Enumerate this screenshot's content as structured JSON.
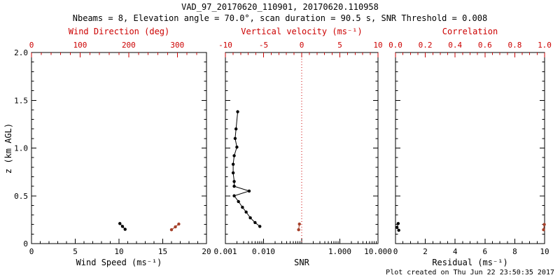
{
  "figure": {
    "title": "VAD_97_20170620_110901, 20170620.110958",
    "subtitle": "Nbeams = 8, Elevation angle = 70.0°, scan duration = 90.5 s, SNR Threshold = 0.008",
    "footer": "Plot created on Thu Jun 22 23:50:35 2017",
    "accent_color": "#cc0000",
    "series_red_color": "#a5402a",
    "foreground_color": "#000000"
  },
  "chart_data": [
    {
      "type": "scatter",
      "panel": "wind",
      "xlabel": "Wind Speed (ms⁻¹)",
      "x2label": "Wind Direction (deg)",
      "ylabel": "z (km AGL)",
      "xlim": [
        0,
        20
      ],
      "x2lim": [
        0,
        360
      ],
      "ylim": [
        0,
        2.0
      ],
      "xticks": [
        0,
        5,
        10,
        15,
        20
      ],
      "xtick_labels": [
        "0",
        "5",
        "10",
        "15",
        "20"
      ],
      "x2ticks": [
        0,
        100,
        200,
        300
      ],
      "x2tick_labels": [
        "0",
        "100",
        "200",
        "300"
      ],
      "yticks": [
        0,
        0.5,
        1.0,
        1.5,
        2.0
      ],
      "ytick_labels": [
        "0",
        "0.5",
        "1.0",
        "1.5",
        "2.0"
      ],
      "xminor_div": 5,
      "x2minor_div": 5,
      "grid": false,
      "series": [
        {
          "name": "wind-speed",
          "axis": "x1",
          "color": "#000000",
          "line": true,
          "points": [
            [
              10.1,
              0.21
            ],
            [
              10.4,
              0.18
            ],
            [
              10.7,
              0.15
            ]
          ]
        },
        {
          "name": "wind-direction",
          "axis": "x2",
          "color": "#a5402a",
          "line": true,
          "points": [
            [
              288,
              0.145
            ],
            [
              296,
              0.175
            ],
            [
              303,
              0.205
            ]
          ]
        }
      ]
    },
    {
      "type": "scatter",
      "panel": "snr",
      "xlabel": "SNR",
      "x2label": "Vertical velocity (ms⁻¹)",
      "xscale": "log",
      "xlim": [
        0.001,
        10.0
      ],
      "x2lim": [
        -10,
        10
      ],
      "ylim": [
        0,
        2.0
      ],
      "xticks": [
        0.001,
        0.01,
        0.1,
        1.0,
        10.0
      ],
      "xtick_labels": [
        "0.001",
        "0.010",
        "",
        "1.000",
        "10.000"
      ],
      "x2ticks": [
        -10,
        -5,
        0,
        5,
        10
      ],
      "x2tick_labels": [
        "-10",
        "-5",
        "0",
        "5",
        "10"
      ],
      "yticks": [
        0,
        0.5,
        1.0,
        1.5,
        2.0
      ],
      "ytick_labels": [],
      "x2minor_div": 5,
      "grid": false,
      "refline": {
        "axis": "x2",
        "value": 0,
        "style": "dotted",
        "color": "#cc0000"
      },
      "series": [
        {
          "name": "snr-profile",
          "axis": "x1",
          "color": "#000000",
          "line": true,
          "points": [
            [
              0.0021,
              1.38
            ],
            [
              0.0019,
              1.2
            ],
            [
              0.0018,
              1.1
            ],
            [
              0.002,
              1.01
            ],
            [
              0.0017,
              0.92
            ],
            [
              0.0016,
              0.83
            ],
            [
              0.0016,
              0.74
            ],
            [
              0.0017,
              0.65
            ],
            [
              0.0017,
              0.6
            ],
            [
              0.0042,
              0.55
            ],
            [
              0.0017,
              0.5
            ],
            [
              0.0022,
              0.44
            ],
            [
              0.0028,
              0.38
            ],
            [
              0.0035,
              0.33
            ],
            [
              0.0045,
              0.27
            ],
            [
              0.006,
              0.22
            ],
            [
              0.008,
              0.18
            ]
          ]
        },
        {
          "name": "vertical-velocity",
          "axis": "x2",
          "color": "#a5402a",
          "line": true,
          "points": [
            [
              -0.4,
              0.145
            ],
            [
              -0.3,
              0.205
            ]
          ]
        }
      ]
    },
    {
      "type": "scatter",
      "panel": "residual",
      "xlabel": "Residual (ms⁻¹)",
      "x2label": "Correlation",
      "xlim": [
        0,
        10
      ],
      "x2lim": [
        0,
        1.0
      ],
      "ylim": [
        0,
        2.0
      ],
      "xticks": [
        0,
        2,
        4,
        6,
        8,
        10
      ],
      "xtick_labels": [
        "0",
        "2",
        "4",
        "6",
        "8",
        "10"
      ],
      "x2ticks": [
        0.0,
        0.2,
        0.4,
        0.6,
        0.8,
        1.0
      ],
      "x2tick_labels": [
        "0.0",
        "0.2",
        "0.4",
        "0.6",
        "0.8",
        "1.0"
      ],
      "yticks": [
        0,
        0.5,
        1.0,
        1.5,
        2.0
      ],
      "ytick_labels": [],
      "xminor_div": 4,
      "x2minor_div": 4,
      "grid": false,
      "series": [
        {
          "name": "residual",
          "axis": "x1",
          "color": "#000000",
          "line": true,
          "points": [
            [
              0.18,
              0.21
            ],
            [
              0.1,
              0.17
            ],
            [
              0.22,
              0.14
            ]
          ]
        },
        {
          "name": "correlation",
          "axis": "x2",
          "color": "#a5402a",
          "line": true,
          "points": [
            [
              0.993,
              0.145
            ],
            [
              0.998,
              0.2
            ]
          ]
        }
      ]
    }
  ]
}
